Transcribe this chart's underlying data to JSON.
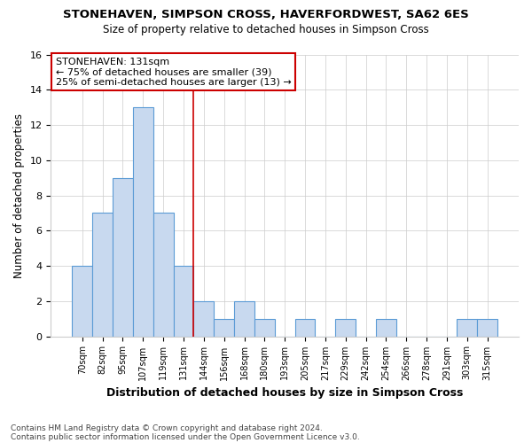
{
  "title1": "STONEHAVEN, SIMPSON CROSS, HAVERFORDWEST, SA62 6ES",
  "title2": "Size of property relative to detached houses in Simpson Cross",
  "xlabel": "Distribution of detached houses by size in Simpson Cross",
  "ylabel": "Number of detached properties",
  "categories": [
    "70sqm",
    "82sqm",
    "95sqm",
    "107sqm",
    "119sqm",
    "131sqm",
    "144sqm",
    "156sqm",
    "168sqm",
    "180sqm",
    "193sqm",
    "205sqm",
    "217sqm",
    "229sqm",
    "242sqm",
    "254sqm",
    "266sqm",
    "278sqm",
    "291sqm",
    "303sqm",
    "315sqm"
  ],
  "values": [
    4,
    7,
    9,
    13,
    7,
    4,
    2,
    1,
    2,
    1,
    0,
    1,
    0,
    1,
    0,
    1,
    0,
    0,
    0,
    1,
    1
  ],
  "bar_color": "#c8d9ef",
  "bar_edge_color": "#5b9bd5",
  "highlight_index": 5,
  "vline_color": "#cc0000",
  "annotation_text": "STONEHAVEN: 131sqm\n← 75% of detached houses are smaller (39)\n25% of semi-detached houses are larger (13) →",
  "annotation_box_color": "white",
  "annotation_box_edge_color": "#cc0000",
  "ylim": [
    0,
    16
  ],
  "yticks": [
    0,
    2,
    4,
    6,
    8,
    10,
    12,
    14,
    16
  ],
  "footer1": "Contains HM Land Registry data © Crown copyright and database right 2024.",
  "footer2": "Contains public sector information licensed under the Open Government Licence v3.0.",
  "grid_color": "#cccccc",
  "bg_color": "#ffffff",
  "plot_bg_color": "#ffffff",
  "title1_fontsize": 9.5,
  "title2_fontsize": 8.5
}
